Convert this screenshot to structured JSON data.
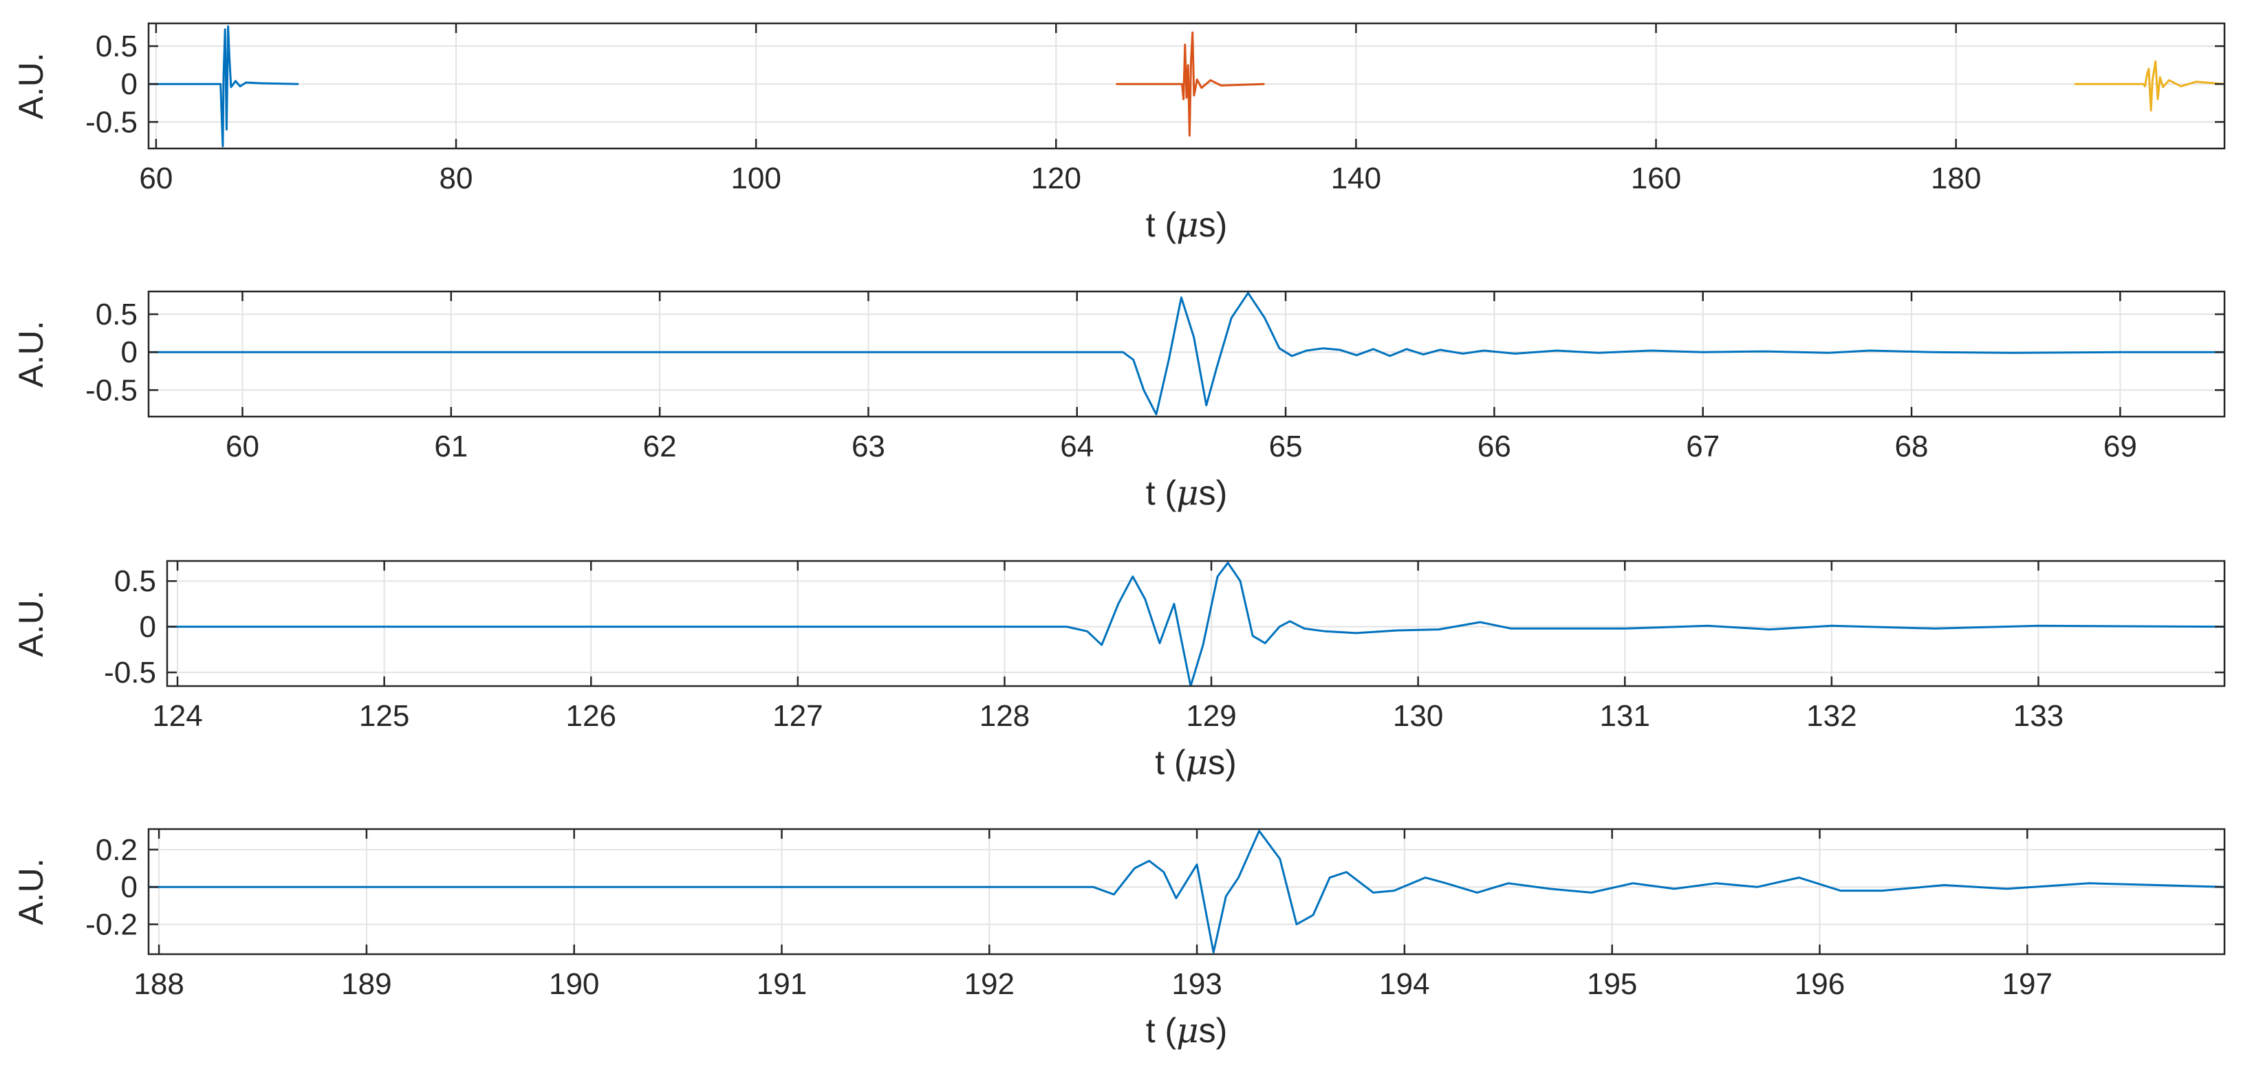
{
  "chart_data": [
    {
      "type": "line",
      "xlabel_base": "t (",
      "xlabel_mu": "μ",
      "xlabel_tail": "s)",
      "ylabel": "A.U.",
      "xlim": [
        59.5,
        197.9
      ],
      "ylim": [
        -0.85,
        0.8
      ],
      "xticks": [
        60,
        80,
        100,
        120,
        140,
        160,
        180
      ],
      "yticks": [
        0.5,
        0,
        -0.5
      ],
      "ytick_labels": [
        "0.5",
        "0",
        "-0.5"
      ],
      "grid": true,
      "series": [
        {
          "color": "#0072bd",
          "x": [
            59.5,
            64.3,
            64.35,
            64.45,
            64.5,
            64.6,
            64.7,
            64.8,
            64.9,
            65.0,
            65.3,
            65.6,
            66,
            67,
            69.5
          ],
          "y": [
            0,
            0,
            -0.3,
            -0.82,
            0.1,
            0.72,
            -0.6,
            0.76,
            0.3,
            -0.04,
            0.04,
            -0.03,
            0.02,
            0.01,
            0
          ]
        },
        {
          "color": "#d95319",
          "x": [
            124,
            128.4,
            128.5,
            128.6,
            128.7,
            128.8,
            128.9,
            129.0,
            129.1,
            129.2,
            129.4,
            129.7,
            130.3,
            131,
            133.9
          ],
          "y": [
            0,
            0,
            -0.2,
            0.52,
            -0.18,
            0.25,
            -0.68,
            0.3,
            0.68,
            -0.15,
            0.06,
            -0.05,
            0.05,
            -0.02,
            0
          ]
        },
        {
          "color": "#edb120",
          "x": [
            187.9,
            192.5,
            192.6,
            192.75,
            192.85,
            193.0,
            193.1,
            193.3,
            193.45,
            193.6,
            193.8,
            194.2,
            195,
            196,
            197.9
          ],
          "y": [
            0,
            0,
            -0.03,
            0.14,
            0.2,
            -0.35,
            0.05,
            0.3,
            -0.2,
            0.09,
            -0.04,
            0.05,
            -0.03,
            0.03,
            0
          ]
        }
      ]
    },
    {
      "type": "line",
      "xlabel_base": "t (",
      "xlabel_mu": "μ",
      "xlabel_tail": "s)",
      "ylabel": "A.U.",
      "xlim": [
        59.55,
        69.5
      ],
      "ylim": [
        -0.85,
        0.8
      ],
      "xticks": [
        60,
        61,
        62,
        63,
        64,
        65,
        66,
        67,
        68,
        69
      ],
      "yticks": [
        0.5,
        0,
        -0.5
      ],
      "ytick_labels": [
        "0.5",
        "0",
        "-0.5"
      ],
      "grid": true,
      "series": [
        {
          "color": "#0072bd",
          "x": [
            59.55,
            64.22,
            64.27,
            64.32,
            64.38,
            64.44,
            64.5,
            64.56,
            64.62,
            64.67,
            64.74,
            64.82,
            64.9,
            64.97,
            65.03,
            65.1,
            65.18,
            65.26,
            65.34,
            65.42,
            65.5,
            65.58,
            65.66,
            65.74,
            65.85,
            65.95,
            66.1,
            66.3,
            66.5,
            66.75,
            67,
            67.3,
            67.6,
            67.8,
            68.1,
            68.5,
            69,
            69.5
          ],
          "y": [
            0,
            0,
            -0.1,
            -0.5,
            -0.82,
            -0.1,
            0.72,
            0.2,
            -0.7,
            -0.2,
            0.45,
            0.78,
            0.45,
            0.05,
            -0.05,
            0.02,
            0.05,
            0.03,
            -0.04,
            0.04,
            -0.05,
            0.04,
            -0.03,
            0.03,
            -0.02,
            0.02,
            -0.02,
            0.02,
            -0.01,
            0.02,
            0.0,
            0.01,
            -0.01,
            0.02,
            0.0,
            -0.01,
            0.0,
            0
          ]
        }
      ]
    },
    {
      "type": "line",
      "xlabel_base": "t (",
      "xlabel_mu": "μ",
      "xlabel_tail": "s)",
      "ylabel": "A.U.",
      "xlim": [
        123.95,
        133.9
      ],
      "ylim": [
        -0.65,
        0.72
      ],
      "xticks": [
        124,
        125,
        126,
        127,
        128,
        129,
        130,
        131,
        132,
        133
      ],
      "yticks": [
        0.5,
        0,
        -0.5
      ],
      "ytick_labels": [
        "0.5",
        "0",
        "-0.5"
      ],
      "grid": true,
      "series": [
        {
          "color": "#0072bd",
          "x": [
            123.95,
            128.3,
            128.4,
            128.47,
            128.55,
            128.62,
            128.68,
            128.75,
            128.82,
            128.9,
            128.96,
            129.03,
            129.08,
            129.14,
            129.2,
            129.26,
            129.33,
            129.38,
            129.45,
            129.55,
            129.7,
            129.9,
            130.1,
            130.3,
            130.45,
            130.7,
            131,
            131.4,
            131.7,
            132,
            132.5,
            133,
            133.9
          ],
          "y": [
            0,
            0,
            -0.05,
            -0.2,
            0.25,
            0.55,
            0.3,
            -0.18,
            0.25,
            -0.65,
            -0.2,
            0.55,
            0.7,
            0.5,
            -0.1,
            -0.18,
            0.0,
            0.06,
            -0.02,
            -0.05,
            -0.07,
            -0.04,
            -0.03,
            0.05,
            -0.02,
            -0.02,
            -0.02,
            0.01,
            -0.03,
            0.01,
            -0.02,
            0.01,
            0
          ]
        }
      ]
    },
    {
      "type": "line",
      "xlabel_base": "t (",
      "xlabel_mu": "μ",
      "xlabel_tail": "s)",
      "ylabel": "A.U.",
      "xlim": [
        187.95,
        197.95
      ],
      "ylim": [
        -0.36,
        0.31
      ],
      "xticks": [
        188,
        189,
        190,
        191,
        192,
        193,
        194,
        195,
        196,
        197
      ],
      "yticks": [
        0.2,
        0,
        -0.2
      ],
      "ytick_labels": [
        "0.2",
        "0",
        "-0.2"
      ],
      "grid": true,
      "series": [
        {
          "color": "#0072bd",
          "x": [
            187.95,
            192.5,
            192.6,
            192.7,
            192.77,
            192.84,
            192.9,
            193.0,
            193.08,
            193.14,
            193.2,
            193.3,
            193.4,
            193.48,
            193.56,
            193.64,
            193.72,
            193.85,
            193.95,
            194.1,
            194.2,
            194.35,
            194.5,
            194.7,
            194.9,
            195.1,
            195.3,
            195.5,
            195.7,
            195.9,
            196.1,
            196.3,
            196.6,
            196.9,
            197.3,
            197.95
          ],
          "y": [
            0,
            0,
            -0.04,
            0.1,
            0.14,
            0.08,
            -0.06,
            0.12,
            -0.35,
            -0.05,
            0.05,
            0.3,
            0.15,
            -0.2,
            -0.15,
            0.05,
            0.08,
            -0.03,
            -0.02,
            0.05,
            0.02,
            -0.03,
            0.02,
            -0.01,
            -0.03,
            0.02,
            -0.01,
            0.02,
            0.0,
            0.05,
            -0.02,
            -0.02,
            0.01,
            -0.01,
            0.02,
            0
          ]
        }
      ]
    }
  ]
}
